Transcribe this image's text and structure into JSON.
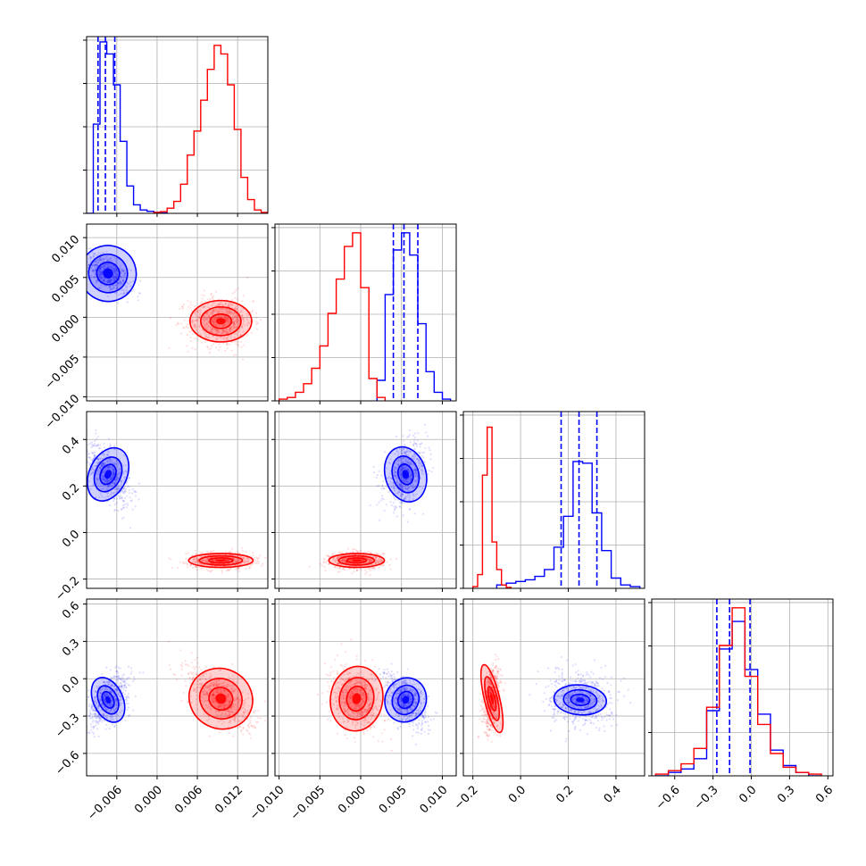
{
  "chart_data": {
    "type": "corner",
    "parameters": [
      {
        "range": [
          -0.0105,
          0.0165
        ],
        "ticks": [
          -0.006,
          0.0,
          0.006,
          0.012
        ],
        "tick_labels": [
          "−0.006",
          "0.000",
          "0.006",
          "0.012"
        ]
      },
      {
        "range": [
          -0.0105,
          0.0117
        ],
        "ticks": [
          -0.01,
          -0.005,
          0.0,
          0.005,
          0.01
        ],
        "tick_labels": [
          "−0.010",
          "−0.005",
          "0.000",
          "0.005",
          "0.010"
        ]
      },
      {
        "range": [
          -0.24,
          0.52
        ],
        "ticks": [
          -0.2,
          0.0,
          0.2,
          0.4
        ],
        "tick_labels": [
          "−0.2",
          "0.0",
          "0.2",
          "0.4"
        ]
      },
      {
        "range": [
          -0.78,
          0.64
        ],
        "ticks": [
          -0.6,
          -0.3,
          0.0,
          0.3,
          0.6
        ],
        "tick_labels": [
          "−0.6",
          "−0.3",
          "0.0",
          "0.3",
          "0.6"
        ]
      }
    ],
    "series": [
      {
        "color": "#0000ff",
        "means": [
          -0.0073,
          0.0055,
          0.25,
          -0.17
        ],
        "spreads": [
          0.0016,
          0.0013,
          0.065,
          0.105
        ],
        "quantiles": [
          [
            -0.0088,
            -0.0077,
            -0.0063
          ],
          [
            0.004,
            0.0053,
            0.007
          ],
          [
            0.17,
            0.245,
            0.32
          ],
          [
            -0.27,
            -0.17,
            -0.01
          ]
        ],
        "histograms": [
          {
            "edges": [
              -0.0105,
              -0.0095,
              -0.0085,
              -0.0075,
              -0.0065,
              -0.0055,
              -0.0045,
              -0.0035,
              -0.0025,
              -0.0015,
              -0.0005,
              0.0005,
              0.0015
            ],
            "counts": [
              0,
              0.52,
              1.0,
              0.93,
              0.75,
              0.42,
              0.16,
              0.05,
              0.02,
              0.012,
              0.006,
              0.003
            ]
          },
          {
            "edges": [
              0.002,
              0.003,
              0.004,
              0.005,
              0.006,
              0.007,
              0.008,
              0.009,
              0.01,
              0.011
            ],
            "counts": [
              0.12,
              0.62,
              0.88,
              0.98,
              0.85,
              0.45,
              0.17,
              0.05,
              0.01
            ]
          },
          {
            "edges": [
              -0.1,
              -0.06,
              -0.02,
              0.02,
              0.06,
              0.1,
              0.14,
              0.18,
              0.22,
              0.26,
              0.3,
              0.34,
              0.38,
              0.42,
              0.46,
              0.5
            ],
            "counts": [
              0.02,
              0.03,
              0.04,
              0.05,
              0.07,
              0.11,
              0.24,
              0.42,
              0.74,
              0.73,
              0.44,
              0.22,
              0.06,
              0.02,
              0.01
            ]
          },
          {
            "edges": [
              -0.75,
              -0.65,
              -0.55,
              -0.45,
              -0.35,
              -0.25,
              -0.15,
              -0.05,
              0.05,
              0.15,
              0.25,
              0.35,
              0.45,
              0.55
            ],
            "counts": [
              0,
              0.02,
              0.04,
              0.1,
              0.38,
              0.74,
              0.9,
              0.62,
              0.36,
              0.15,
              0.06,
              0.02,
              0.0
            ]
          }
        ],
        "pair_contours": [
          {
            "pair": [
              0,
              1
            ],
            "ellipses": [
              [
                0.0017,
                0.0014,
                -0.6
              ],
              [
                0.0029,
                0.0024,
                -0.6
              ],
              [
                0.0042,
                0.0035,
                -0.6
              ]
            ]
          },
          {
            "pair": [
              0,
              2
            ],
            "ellipses": [
              [
                0.0011,
                0.045,
                -0.55
              ],
              [
                0.0019,
                0.078,
                -0.55
              ],
              [
                0.0028,
                0.12,
                -0.55
              ]
            ]
          },
          {
            "pair": [
              1,
              2
            ],
            "ellipses": [
              [
                0.0009,
                0.045,
                0.35
              ],
              [
                0.0016,
                0.08,
                0.35
              ],
              [
                0.0025,
                0.12,
                0.35
              ]
            ]
          },
          {
            "pair": [
              0,
              3
            ],
            "ellipses": [
              [
                0.0008,
                0.07,
                0.55
              ],
              [
                0.0014,
                0.12,
                0.55
              ],
              [
                0.0022,
                0.19,
                0.55
              ]
            ]
          },
          {
            "pair": [
              1,
              3
            ],
            "ellipses": [
              [
                0.0009,
                0.07,
                -0.55
              ],
              [
                0.0016,
                0.12,
                -0.55
              ],
              [
                0.0025,
                0.18,
                -0.55
              ]
            ]
          },
          {
            "pair": [
              2,
              3
            ],
            "ellipses": [
              [
                0.04,
                0.045,
                -0.1
              ],
              [
                0.07,
                0.08,
                -0.1
              ],
              [
                0.11,
                0.12,
                -0.1
              ]
            ]
          }
        ]
      },
      {
        "color": "#ff0000",
        "means": [
          0.0095,
          -0.0005,
          -0.12,
          -0.16
        ],
        "spreads": [
          0.0024,
          0.0016,
          0.018,
          0.125
        ],
        "quantiles": null,
        "histograms": [
          {
            "edges": [
              -0.0005,
              0.0005,
              0.0015,
              0.0025,
              0.0035,
              0.0045,
              0.0055,
              0.0065,
              0.0075,
              0.0085,
              0.0095,
              0.0105,
              0.0115,
              0.0125,
              0.0135,
              0.0145,
              0.0155,
              0.0165
            ],
            "counts": [
              0.005,
              0.01,
              0.03,
              0.07,
              0.17,
              0.34,
              0.48,
              0.66,
              0.84,
              0.98,
              0.93,
              0.75,
              0.49,
              0.21,
              0.08,
              0.02,
              0.005
            ]
          },
          {
            "edges": [
              -0.01,
              -0.009,
              -0.008,
              -0.007,
              -0.006,
              -0.005,
              -0.004,
              -0.003,
              -0.002,
              -0.001,
              0.0,
              0.001,
              0.002,
              0.003
            ],
            "counts": [
              0.01,
              0.02,
              0.05,
              0.1,
              0.19,
              0.32,
              0.51,
              0.71,
              0.9,
              0.98,
              0.66,
              0.13,
              0.02
            ]
          },
          {
            "edges": [
              -0.2,
              -0.18,
              -0.16,
              -0.14,
              -0.12,
              -0.1,
              -0.08,
              -0.06,
              -0.04
            ],
            "counts": [
              0.01,
              0.08,
              0.66,
              0.94,
              0.27,
              0.11,
              0.02,
              0.005
            ]
          },
          {
            "edges": [
              -0.75,
              -0.65,
              -0.55,
              -0.45,
              -0.35,
              -0.25,
              -0.15,
              -0.05,
              0.05,
              0.15,
              0.25,
              0.35,
              0.45,
              0.55
            ],
            "counts": [
              0.01,
              0.03,
              0.07,
              0.16,
              0.4,
              0.76,
              0.98,
              0.58,
              0.3,
              0.13,
              0.05,
              0.02,
              0.01
            ]
          }
        ],
        "pair_contours": [
          {
            "pair": [
              0,
              1
            ],
            "ellipses": [
              [
                0.0016,
                0.0009,
                0.0
              ],
              [
                0.003,
                0.0018,
                0.0
              ],
              [
                0.0046,
                0.0026,
                0.0
              ]
            ]
          },
          {
            "pair": [
              0,
              2
            ],
            "ellipses": [
              [
                0.0018,
                0.011,
                0.0
              ],
              [
                0.0032,
                0.02,
                0.0
              ],
              [
                0.0048,
                0.03,
                0.0
              ]
            ]
          },
          {
            "pair": [
              1,
              2
            ],
            "ellipses": [
              [
                0.0012,
                0.011,
                0.0
              ],
              [
                0.0022,
                0.02,
                0.0
              ],
              [
                0.0034,
                0.03,
                0.0
              ]
            ]
          },
          {
            "pair": [
              0,
              3
            ],
            "ellipses": [
              [
                0.0018,
                0.09,
                -0.6
              ],
              [
                0.0032,
                0.16,
                -0.6
              ],
              [
                0.0048,
                0.24,
                -0.6
              ]
            ]
          },
          {
            "pair": [
              1,
              3
            ],
            "ellipses": [
              [
                0.0012,
                0.1,
                -0.2
              ],
              [
                0.0021,
                0.17,
                -0.2
              ],
              [
                0.0032,
                0.26,
                -0.2
              ]
            ]
          },
          {
            "pair": [
              2,
              3
            ],
            "ellipses": [
              [
                0.012,
                0.1,
                0.3
              ],
              [
                0.022,
                0.18,
                0.3
              ],
              [
                0.032,
                0.28,
                0.3
              ]
            ]
          }
        ]
      }
    ],
    "grid": true,
    "title": "",
    "legend": null
  }
}
